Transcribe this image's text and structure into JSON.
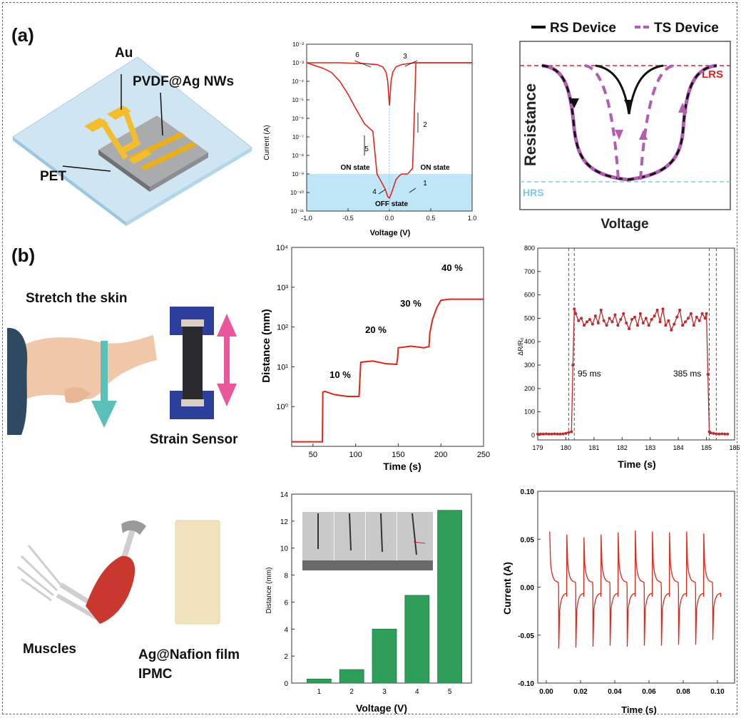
{
  "panel_labels": {
    "a": "(a)",
    "b": "(b)"
  },
  "device_illustration": {
    "au": "Au",
    "pvdf": "PVDF@Ag NWs",
    "pet": "PET"
  },
  "skin_illustration": {
    "stretch": "Stretch the skin",
    "sensor": "Strain Sensor"
  },
  "muscle_illustration": {
    "muscles": "Muscles",
    "film_line1": "Ag@Nafion film",
    "film_line2": "IPMC"
  },
  "colors": {
    "red_curve": "#e0251b",
    "magenta": "#b35cb3",
    "black": "#111111",
    "lrs": "#e02020",
    "hrs": "#7ec8e3",
    "band": "#bfe6f7",
    "bar_green": "#2e9e5a",
    "marker_red": "#c0282a",
    "frame": "#3d6fb6",
    "arrow_pink": "#e8579a",
    "arrow_teal": "#5bc0b7"
  },
  "chart_data": [
    {
      "id": "iv",
      "type": "line",
      "xlabel": "Voltage (V)",
      "ylabel": "Current (A)",
      "xlim": [
        -1.0,
        1.0
      ],
      "ylim": [
        1e-11,
        0.01
      ],
      "yscale": "log",
      "xticks": [
        "-1.0",
        "-0.5",
        "0.0",
        "0.5",
        "1.0"
      ],
      "yticks": [
        "10⁻¹¹",
        "10⁻¹⁰",
        "10⁻⁹",
        "10⁻⁸",
        "10⁻⁷",
        "10⁻⁶",
        "10⁻⁵",
        "10⁻⁴",
        "10⁻³",
        "10⁻²"
      ],
      "annotations": [
        "1",
        "2",
        "3",
        "4",
        "5",
        "6",
        "ON state",
        "ON state",
        "OFF state"
      ],
      "series": [
        {
          "x": [
            -1.0,
            -0.9,
            -0.8,
            -0.7,
            -0.6,
            -0.5,
            -0.4,
            -0.3,
            -0.2,
            -0.15,
            -0.1,
            -0.05,
            -0.02,
            0.0,
            0.02,
            0.05,
            0.08,
            0.12,
            0.15,
            0.22,
            0.28,
            0.3,
            0.32,
            0.5,
            0.7,
            1.0
          ],
          "y": [
            0.001,
            0.0007,
            0.0005,
            0.0003,
            0.0001,
            2e-05,
            3e-06,
            5e-07,
            2e-07,
            1e-09,
            4e-10,
            1.5e-10,
            6e-11,
            5e-11,
            8e-11,
            2e-10,
            5e-10,
            8e-10,
            1e-09,
            1e-09,
            2e-09,
            1e-06,
            0.001,
            0.001,
            0.001,
            0.001
          ]
        },
        {
          "x": [
            -1.0,
            -0.6,
            -0.3,
            -0.15,
            -0.08,
            -0.04,
            -0.02,
            0.0,
            0.01,
            0.02,
            0.04,
            0.08,
            0.15,
            0.3,
            0.6,
            1.0
          ],
          "y": [
            0.001,
            0.001,
            0.0009,
            0.0008,
            0.0006,
            0.0003,
            0.0001,
            5e-06,
            2e-05,
            0.0001,
            0.0003,
            0.0006,
            0.0008,
            0.001,
            0.001,
            0.001
          ]
        }
      ]
    },
    {
      "id": "resistance",
      "type": "line",
      "xlabel": "Voltage",
      "ylabel": "Resistance",
      "legend": [
        "RS Device",
        "TS Device"
      ],
      "reference_lines": [
        "LRS",
        "HRS"
      ]
    },
    {
      "id": "distance_time",
      "type": "line",
      "xlabel": "Time (s)",
      "ylabel": "Distance (mm)",
      "xlim": [
        25,
        250
      ],
      "ylim": [
        0.1,
        10000
      ],
      "yscale": "log",
      "xticks": [
        "50",
        "100",
        "150",
        "200",
        "250"
      ],
      "yticks": [
        "10⁰",
        "10¹",
        "10²",
        "10³",
        "10⁴"
      ],
      "step_labels": [
        "10 %",
        "20 %",
        "30 %",
        "40 %"
      ],
      "x": [
        25,
        61,
        61.5,
        64,
        75,
        90,
        104,
        105,
        106,
        120,
        135,
        148,
        149,
        150,
        165,
        180,
        186,
        187,
        190,
        195,
        200,
        210,
        230,
        250
      ],
      "y": [
        0.13,
        0.13,
        2.3,
        2.4,
        2.0,
        1.8,
        1.8,
        5,
        13,
        14,
        12,
        11.5,
        15,
        30,
        33,
        30,
        32,
        70,
        150,
        300,
        470,
        500,
        500,
        500
      ]
    },
    {
      "id": "response",
      "type": "line",
      "xlabel": "Time (s)",
      "ylabel": "ΔR/R₀",
      "xlim": [
        179,
        186
      ],
      "ylim": [
        -20,
        800
      ],
      "xticks": [
        "179",
        "180",
        "181",
        "182",
        "183",
        "184",
        "185",
        "186"
      ],
      "yticks": [
        "0",
        "100",
        "200",
        "300",
        "400",
        "500",
        "600",
        "700",
        "800"
      ],
      "annotations": [
        "95 ms",
        "385 ms"
      ],
      "x": [
        179.0,
        179.1,
        179.2,
        179.3,
        179.4,
        179.5,
        179.6,
        179.7,
        179.8,
        179.9,
        180.0,
        180.1,
        180.2,
        180.25,
        180.3,
        180.35,
        180.45,
        180.55,
        180.65,
        180.75,
        180.85,
        180.95,
        181.05,
        181.15,
        181.25,
        181.35,
        181.45,
        181.55,
        181.65,
        181.75,
        181.85,
        181.95,
        182.05,
        182.15,
        182.25,
        182.35,
        182.45,
        182.55,
        182.65,
        182.75,
        182.85,
        182.95,
        183.05,
        183.15,
        183.25,
        183.35,
        183.45,
        183.55,
        183.65,
        183.75,
        183.85,
        183.95,
        184.05,
        184.15,
        184.25,
        184.35,
        184.45,
        184.55,
        184.65,
        184.75,
        184.85,
        184.95,
        185.0,
        185.05,
        185.1,
        185.15,
        185.25,
        185.35,
        185.45,
        185.55,
        185.65,
        185.75
      ],
      "y": [
        5,
        5,
        5,
        6,
        5,
        5,
        6,
        5,
        5,
        6,
        8,
        12,
        15,
        300,
        540,
        520,
        490,
        500,
        470,
        485,
        495,
        475,
        510,
        480,
        535,
        490,
        470,
        500,
        485,
        515,
        470,
        495,
        520,
        480,
        455,
        495,
        505,
        470,
        520,
        480,
        500,
        470,
        495,
        510,
        535,
        485,
        540,
        470,
        490,
        450,
        475,
        505,
        535,
        470,
        485,
        500,
        520,
        470,
        505,
        490,
        520,
        500,
        520,
        260,
        15,
        10,
        8,
        6,
        5,
        6,
        5,
        5
      ]
    },
    {
      "id": "distance_voltage",
      "type": "bar",
      "xlabel": "Voltage (V)",
      "ylabel": "Distance (mm)",
      "categories": [
        "1",
        "2",
        "3",
        "4",
        "5"
      ],
      "values": [
        0.3,
        1.0,
        4.0,
        6.5,
        12.8
      ],
      "ylim": [
        0,
        14
      ],
      "yticks": [
        "0",
        "2",
        "4",
        "6",
        "8",
        "10",
        "12",
        "14"
      ]
    },
    {
      "id": "current_time",
      "type": "line",
      "xlabel": "Time (s)",
      "ylabel": "Current (A)",
      "xlim": [
        -0.005,
        0.11
      ],
      "ylim": [
        -0.1,
        0.1
      ],
      "xticks": [
        "0.00",
        "0.02",
        "0.04",
        "0.06",
        "0.08",
        "0.10"
      ],
      "yticks": [
        "-0.10",
        "-0.05",
        "0.00",
        "0.05",
        "0.10"
      ],
      "pulse_times": [
        0.002,
        0.012,
        0.022,
        0.032,
        0.042,
        0.052,
        0.062,
        0.072,
        0.082,
        0.092
      ],
      "pulse_peak_pos": [
        0.058,
        0.055,
        0.052,
        0.055,
        0.057,
        0.059,
        0.058,
        0.057,
        0.058,
        0.056
      ],
      "pulse_peak_neg": [
        -0.064,
        -0.063,
        -0.062,
        -0.061,
        -0.062,
        -0.061,
        -0.061,
        -0.06,
        -0.06,
        -0.055
      ]
    }
  ]
}
